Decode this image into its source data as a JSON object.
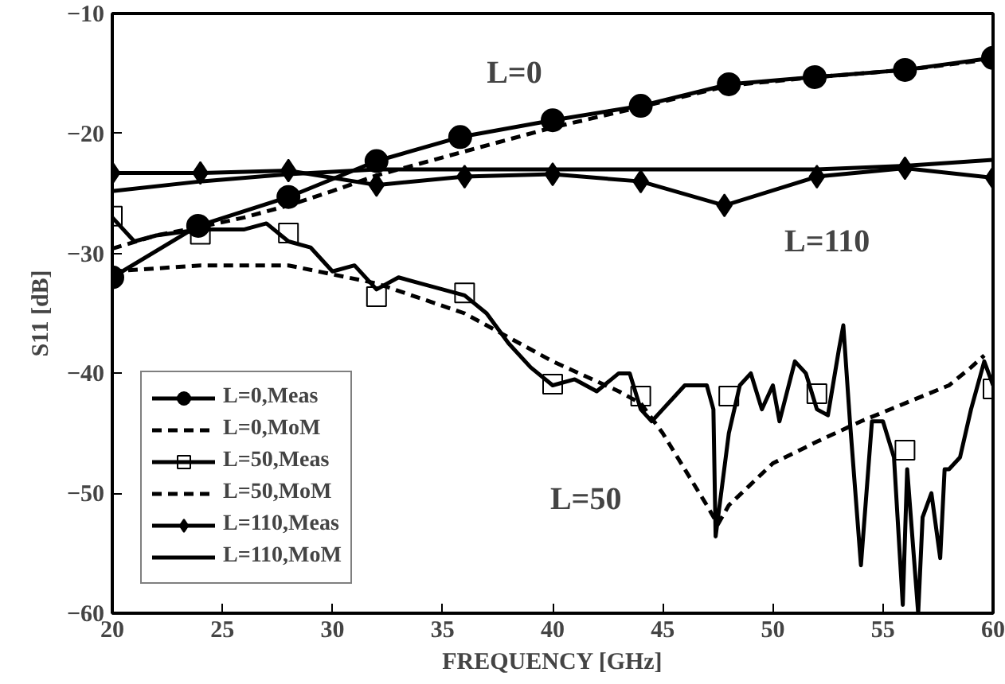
{
  "chart_data": {
    "type": "line",
    "xlabel": "FREQUENCY [GHz]",
    "ylabel": "S11 [dB]",
    "xlim": [
      20,
      60
    ],
    "ylim": [
      -60,
      -10
    ],
    "xticks": [
      20,
      25,
      30,
      35,
      40,
      45,
      50,
      55,
      60
    ],
    "yticks": [
      -60,
      -50,
      -40,
      -30,
      -20,
      -10
    ],
    "grid": false,
    "legend": "bottom left",
    "annotations": [
      "L=0",
      "L=110",
      "L=50"
    ],
    "series": [
      {
        "name": "L=0,Meas",
        "color": "#000000",
        "marker": "circle",
        "line_style": "solid",
        "x": [
          20,
          23.9,
          28,
          32,
          35.8,
          40,
          44,
          48,
          51.9,
          56,
          60
        ],
        "values": [
          -32,
          -27.7,
          -25.3,
          -22.3,
          -20.3,
          -18.9,
          -17.7,
          -15.9,
          -15.3,
          -14.7,
          -13.7
        ]
      },
      {
        "name": "L=0,MoM",
        "color": "#000000",
        "marker": "none",
        "line_style": "dashed",
        "x": [
          20,
          22,
          24,
          26,
          28,
          30,
          32,
          34,
          36,
          38,
          40,
          44,
          48,
          52,
          56,
          60
        ],
        "values": [
          -29.6,
          -28.5,
          -27.8,
          -27,
          -26,
          -24.8,
          -23.5,
          -22.5,
          -21.5,
          -20.5,
          -19.5,
          -17.8,
          -16,
          -15.3,
          -14.7,
          -13.8
        ]
      },
      {
        "name": "L=50,Meas",
        "color": "#000000",
        "marker": "none",
        "line_style": "solid",
        "x": [
          20,
          21,
          22,
          24,
          26,
          27,
          28,
          29,
          30,
          31,
          32,
          33,
          34,
          35,
          36,
          37,
          38,
          39,
          40,
          41,
          42,
          43,
          43.5,
          44,
          44.5,
          45,
          46,
          47,
          47.3,
          47.4,
          48,
          48.5,
          49,
          49.5,
          50,
          50.3,
          51,
          51.5,
          52,
          52.5,
          53,
          53.2,
          53.5,
          54,
          54.5,
          55,
          55.5,
          55.9,
          56.1,
          56.6,
          56.8,
          57.2,
          57.6,
          57.8,
          58,
          58.5,
          59,
          59.6,
          60
        ],
        "values": [
          -27,
          -29,
          -28.5,
          -28,
          -28,
          -27.5,
          -29,
          -29.5,
          -31.5,
          -31,
          -33,
          -32,
          -32.5,
          -33,
          -33.5,
          -35,
          -37.5,
          -39.5,
          -41,
          -40.5,
          -41.5,
          -40,
          -40,
          -43,
          -44,
          -43,
          -41,
          -41,
          -43,
          -53.6,
          -45,
          -41,
          -40,
          -43,
          -41,
          -44,
          -39,
          -40,
          -43,
          -43.5,
          -38,
          -36,
          -44,
          -56,
          -44,
          -44,
          -47,
          -59.3,
          -48,
          -60,
          -52,
          -50,
          -55.4,
          -48,
          -48,
          -47,
          -43,
          -39,
          -41
        ]
      },
      {
        "color": "#000000",
        "type": "scatter",
        "marker": "square",
        "x": [
          20,
          24,
          28,
          32,
          36,
          40,
          44,
          48,
          52,
          56,
          60
        ],
        "values": [
          -26.9,
          -28.4,
          -28.3,
          -33.6,
          -33.3,
          -40.9,
          -41.9,
          -41.9,
          -41.7,
          -46.4,
          -41.3
        ]
      },
      {
        "name": "L=50,MoM",
        "color": "#000000",
        "marker": "none",
        "line_style": "dashed",
        "x": [
          20,
          24,
          28,
          32,
          36,
          40,
          43,
          44,
          45,
          46,
          47,
          47.5,
          48,
          50,
          52,
          54,
          56,
          58,
          59,
          59.6
        ],
        "values": [
          -31.5,
          -31,
          -31,
          -32.5,
          -35,
          -39,
          -41.5,
          -42.5,
          -45,
          -48,
          -51,
          -52.6,
          -51,
          -47.5,
          -45.7,
          -44,
          -42.5,
          -41,
          -39.5,
          -38.5
        ]
      },
      {
        "name": "L=110,Meas",
        "color": "#000000",
        "marker": "diamond",
        "line_style": "solid",
        "x": [
          20,
          24,
          28,
          32,
          36,
          40,
          44,
          47.8,
          52,
          56,
          60
        ],
        "values": [
          -23.3,
          -23.3,
          -23.1,
          -24.3,
          -23.6,
          -23.4,
          -24,
          -26,
          -23.6,
          -22.9,
          -23.7
        ]
      },
      {
        "name": "L=110,MoM",
        "color": "#000000",
        "marker": "none",
        "line_style": "solid",
        "x": [
          20,
          24,
          28,
          32,
          40,
          48,
          52,
          56,
          60
        ],
        "values": [
          -24.8,
          -24,
          -23.4,
          -23,
          -23,
          -23,
          -23,
          -22.7,
          -22.2
        ]
      }
    ]
  }
}
